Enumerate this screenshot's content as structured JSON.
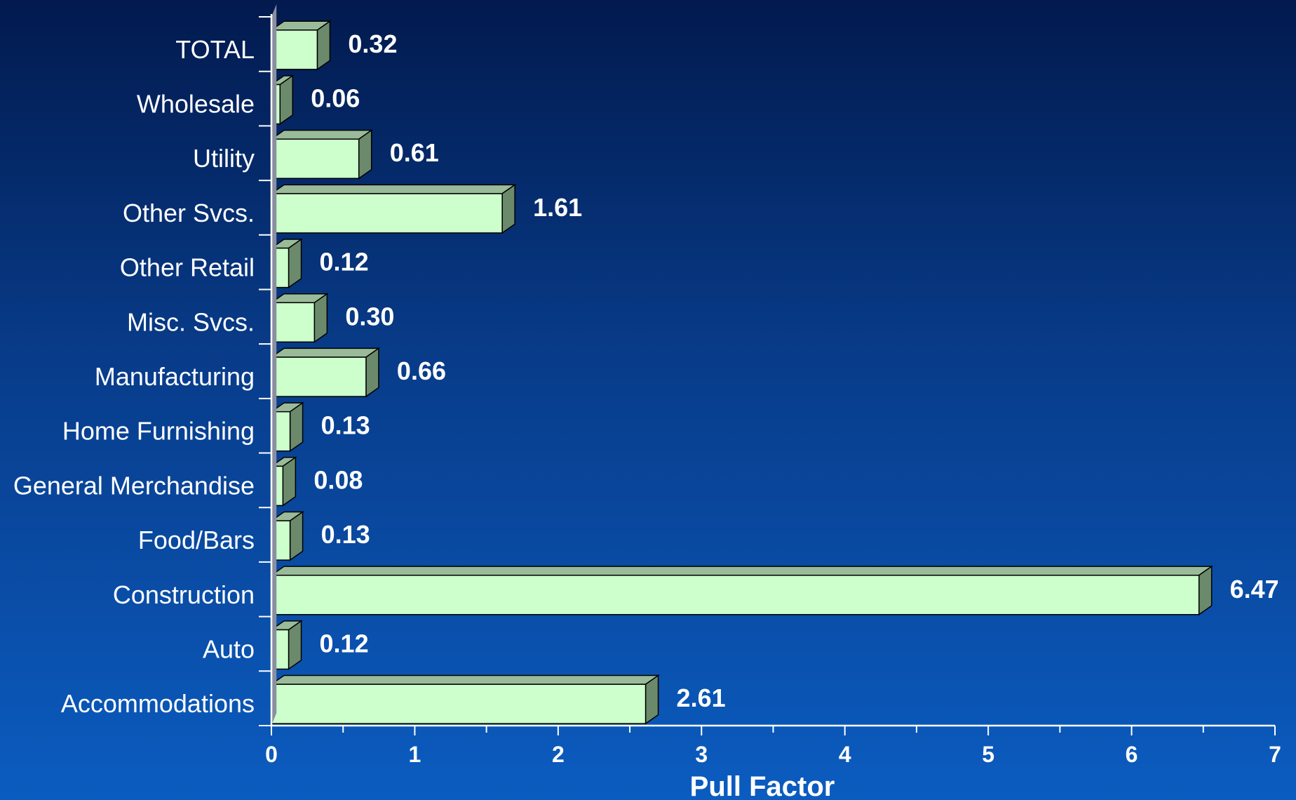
{
  "chart_data": {
    "type": "bar",
    "orientation": "horizontal",
    "categories": [
      "TOTAL",
      "Wholesale",
      "Utility",
      "Other Svcs.",
      "Other Retail",
      "Misc. Svcs.",
      "Manufacturing",
      "Home Furnishing",
      "General Merchandise",
      "Food/Bars",
      "Construction",
      "Auto",
      "Accommodations"
    ],
    "values": [
      0.32,
      0.06,
      0.61,
      1.61,
      0.12,
      0.3,
      0.66,
      0.13,
      0.08,
      0.13,
      6.47,
      0.12,
      2.61
    ],
    "value_labels": [
      "0.32",
      "0.06",
      "0.61",
      "1.61",
      "0.12",
      "0.30",
      "0.66",
      "0.13",
      "0.08",
      "0.13",
      "6.47",
      "0.12",
      "2.61"
    ],
    "xlabel": "Pull Factor",
    "xlim": [
      0,
      7
    ],
    "xticks": [
      "0",
      "1",
      "2",
      "3",
      "4",
      "5",
      "6",
      "7"
    ],
    "grid": false,
    "legend": "none",
    "colors": {
      "bar_front": "#ccffcc",
      "bar_top": "#99bb99",
      "bar_side": "#6b8a6b",
      "axis": "#ffffff",
      "text": "#ffffff"
    }
  }
}
